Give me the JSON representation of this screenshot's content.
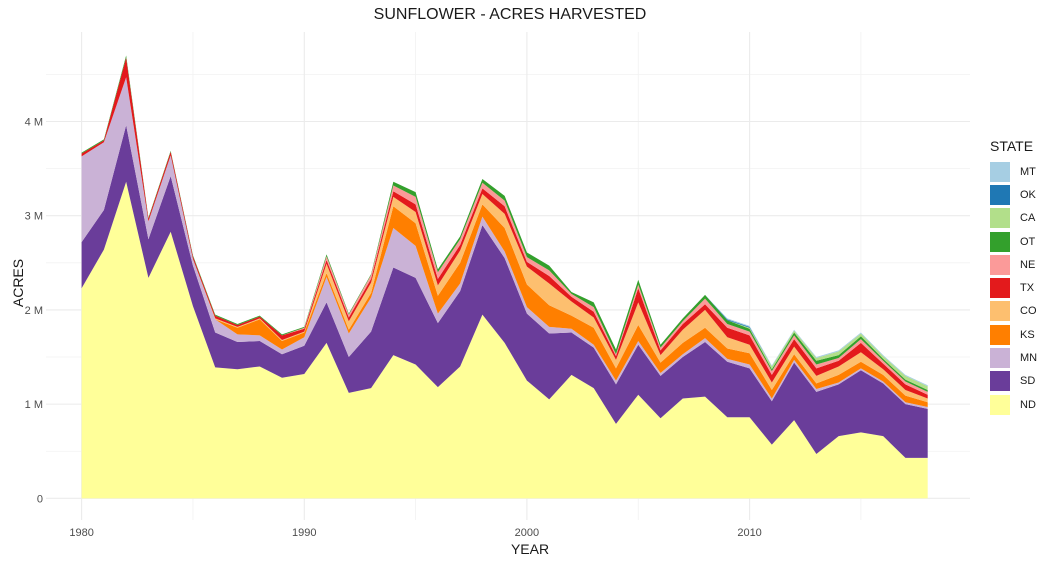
{
  "chart_data": {
    "type": "area",
    "stacked": true,
    "title": "SUNFLOWER - ACRES HARVESTED",
    "xlabel": "YEAR",
    "ylabel": "ACRES",
    "legend_title": "STATE",
    "legend_position": "right",
    "grid": true,
    "xlim": [
      1978.4,
      2019.9
    ],
    "ylim": [
      -230000,
      4950000
    ],
    "x_ticks": [
      1980,
      1990,
      2000,
      2010
    ],
    "y_ticks": [
      0,
      1000000,
      2000000,
      3000000,
      4000000
    ],
    "y_tick_labels": [
      "0",
      "1 M",
      "2 M",
      "3 M",
      "4 M"
    ],
    "x": [
      1980,
      1981,
      1982,
      1983,
      1984,
      1985,
      1986,
      1987,
      1988,
      1989,
      1990,
      1991,
      1992,
      1993,
      1994,
      1995,
      1996,
      1997,
      1998,
      1999,
      2000,
      2001,
      2002,
      2003,
      2004,
      2005,
      2006,
      2007,
      2008,
      2009,
      2010,
      2011,
      2012,
      2013,
      2014,
      2015,
      2016,
      2017,
      2018
    ],
    "series": [
      {
        "name": "ND",
        "color": "#FFFF99",
        "values": [
          2230000,
          2640000,
          3360000,
          2340000,
          2830000,
          2040000,
          1390000,
          1370000,
          1400000,
          1280000,
          1320000,
          1650000,
          1120000,
          1170000,
          1520000,
          1420000,
          1180000,
          1400000,
          1950000,
          1650000,
          1250000,
          1050000,
          1310000,
          1170000,
          790000,
          1100000,
          850000,
          1060000,
          1080000,
          860000,
          860000,
          570000,
          830000,
          470000,
          660000,
          700000,
          660000,
          430000,
          430000
        ]
      },
      {
        "name": "SD",
        "color": "#6A3D9A",
        "values": [
          490000,
          420000,
          600000,
          410000,
          590000,
          430000,
          370000,
          290000,
          270000,
          250000,
          300000,
          430000,
          380000,
          600000,
          930000,
          920000,
          680000,
          800000,
          950000,
          900000,
          710000,
          700000,
          450000,
          430000,
          420000,
          530000,
          450000,
          440000,
          580000,
          590000,
          520000,
          460000,
          610000,
          660000,
          550000,
          660000,
          560000,
          570000,
          520000
        ]
      },
      {
        "name": "MN",
        "color": "#CAB2D6",
        "values": [
          910000,
          720000,
          510000,
          190000,
          220000,
          70000,
          140000,
          80000,
          60000,
          50000,
          90000,
          270000,
          250000,
          360000,
          420000,
          340000,
          100000,
          80000,
          90000,
          70000,
          70000,
          70000,
          40000,
          30000,
          40000,
          40000,
          30000,
          30000,
          40000,
          30000,
          40000,
          30000,
          30000,
          30000,
          20000,
          20000,
          20000,
          20000,
          20000
        ]
      },
      {
        "name": "KS",
        "color": "#FF7F00",
        "values": [
          0,
          0,
          0,
          0,
          0,
          0,
          0,
          70000,
          170000,
          90000,
          50000,
          40000,
          40000,
          50000,
          230000,
          240000,
          190000,
          220000,
          130000,
          250000,
          240000,
          230000,
          140000,
          180000,
          130000,
          170000,
          110000,
          120000,
          110000,
          110000,
          120000,
          90000,
          60000,
          60000,
          80000,
          70000,
          70000,
          70000,
          50000
        ]
      },
      {
        "name": "CO",
        "color": "#FDBF6F",
        "values": [
          0,
          0,
          0,
          0,
          0,
          0,
          10000,
          10000,
          10000,
          10000,
          10000,
          100000,
          90000,
          110000,
          100000,
          120000,
          110000,
          130000,
          110000,
          150000,
          190000,
          230000,
          150000,
          110000,
          90000,
          240000,
          80000,
          140000,
          190000,
          120000,
          90000,
          80000,
          80000,
          80000,
          90000,
          100000,
          60000,
          60000,
          40000
        ]
      },
      {
        "name": "TX",
        "color": "#E31A1C",
        "values": [
          30000,
          20000,
          210000,
          30000,
          40000,
          30000,
          30000,
          20000,
          20000,
          50000,
          30000,
          40000,
          40000,
          40000,
          60000,
          80000,
          70000,
          60000,
          60000,
          80000,
          50000,
          80000,
          50000,
          60000,
          40000,
          150000,
          50000,
          60000,
          60000,
          100000,
          100000,
          80000,
          80000,
          80000,
          60000,
          100000,
          60000,
          60000,
          40000
        ]
      },
      {
        "name": "NE",
        "color": "#FB9A99",
        "values": [
          0,
          0,
          0,
          0,
          0,
          0,
          0,
          0,
          0,
          0,
          10000,
          40000,
          30000,
          40000,
          60000,
          80000,
          70000,
          60000,
          60000,
          60000,
          50000,
          60000,
          30000,
          50000,
          20000,
          40000,
          30000,
          30000,
          60000,
          40000,
          40000,
          40000,
          40000,
          40000,
          30000,
          40000,
          30000,
          30000,
          30000
        ]
      },
      {
        "name": "OT",
        "color": "#33A02C",
        "values": [
          10000,
          10000,
          20000,
          10000,
          10000,
          10000,
          10000,
          10000,
          10000,
          10000,
          10000,
          20000,
          10000,
          10000,
          40000,
          50000,
          30000,
          30000,
          40000,
          50000,
          50000,
          50000,
          20000,
          50000,
          50000,
          50000,
          30000,
          30000,
          40000,
          40000,
          30000,
          20000,
          30000,
          40000,
          30000,
          30000,
          20000,
          20000,
          20000
        ]
      },
      {
        "name": "CA",
        "color": "#B2DF8A",
        "values": [
          0,
          0,
          0,
          0,
          0,
          0,
          0,
          0,
          0,
          0,
          0,
          0,
          0,
          0,
          0,
          0,
          0,
          0,
          0,
          0,
          0,
          0,
          0,
          0,
          0,
          0,
          0,
          0,
          0,
          0,
          10000,
          30000,
          20000,
          30000,
          40000,
          30000,
          30000,
          40000,
          40000
        ]
      },
      {
        "name": "OK",
        "color": "#1F78B4",
        "values": [
          0,
          0,
          0,
          0,
          0,
          0,
          0,
          0,
          0,
          0,
          0,
          0,
          0,
          0,
          0,
          0,
          0,
          0,
          0,
          0,
          0,
          0,
          0,
          0,
          0,
          0,
          0,
          0,
          0,
          10000,
          10000,
          0,
          0,
          0,
          0,
          0,
          0,
          0,
          0
        ]
      },
      {
        "name": "MT",
        "color": "#A6CEE3",
        "values": [
          0,
          0,
          0,
          0,
          0,
          0,
          0,
          0,
          0,
          0,
          0,
          0,
          0,
          0,
          0,
          0,
          0,
          0,
          0,
          0,
          0,
          0,
          0,
          0,
          0,
          0,
          0,
          0,
          0,
          10000,
          10000,
          10000,
          10000,
          10000,
          10000,
          10000,
          10000,
          10000,
          10000
        ]
      }
    ]
  }
}
